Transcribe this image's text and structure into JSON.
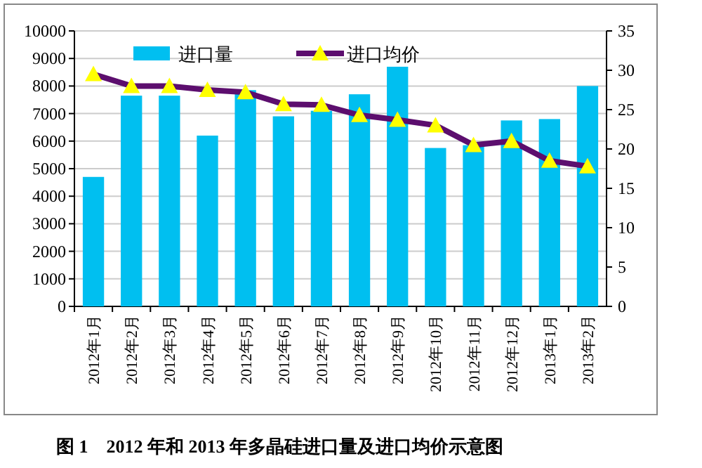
{
  "chart_data": {
    "type": "bar",
    "title": "图 1　2012 年和 2013 年多晶硅进口量及进口均价示意图",
    "categories": [
      "2012年1月",
      "2012年2月",
      "2012年3月",
      "2012年4月",
      "2012年5月",
      "2012年6月",
      "2012年7月",
      "2012年8月",
      "2012年9月",
      "2012年10月",
      "2012年11月",
      "2012年12月",
      "2013年1月",
      "2013年2月"
    ],
    "series": [
      {
        "name": "进口量",
        "type": "bar",
        "color": "#00bff0",
        "values": [
          4700,
          7650,
          7650,
          6200,
          7850,
          6900,
          7100,
          7700,
          8700,
          5750,
          5850,
          6750,
          6800,
          8000
        ]
      },
      {
        "name": "进口均价",
        "type": "line",
        "axis": "y2",
        "color": "#5c0e6e",
        "marker": "triangle",
        "values": [
          29.5,
          28,
          28,
          27.5,
          27.2,
          25.7,
          25.6,
          24.3,
          23.7,
          23,
          20.5,
          21,
          18.5,
          17.8
        ]
      }
    ],
    "ylim": [
      0,
      10000
    ],
    "yticks": [
      0,
      1000,
      2000,
      3000,
      4000,
      5000,
      6000,
      7000,
      8000,
      9000,
      10000
    ],
    "y2lim": [
      0,
      35
    ],
    "y2ticks": [
      0,
      5,
      10,
      15,
      20,
      25,
      30,
      35
    ],
    "grid": "y",
    "legend": "top"
  }
}
